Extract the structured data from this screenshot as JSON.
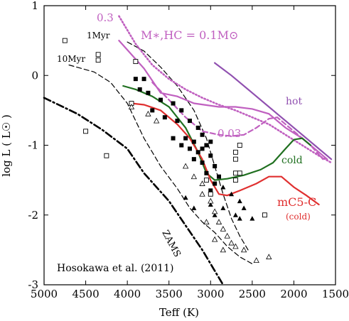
{
  "chart_data": {
    "type": "line",
    "title": "",
    "xlabel": "Teff (K)",
    "ylabel": "log L ( L☉ )",
    "xlim": [
      5000,
      1500
    ],
    "ylim": [
      -3,
      1
    ],
    "x_reversed": true,
    "x_ticks": [
      5000,
      4500,
      4000,
      3500,
      3000,
      2500,
      2000,
      1500
    ],
    "y_ticks": [
      1,
      0,
      -1,
      -2,
      -3
    ],
    "grid": false,
    "annotations": {
      "credit": "Hosokawa et al. (2011)",
      "m_hc": "M∗,HC = 0.1M⊙",
      "val_03_top": "0.3",
      "val_003": "0.03",
      "hot": "hot",
      "cold": "cold",
      "mc5c": "mC5-C",
      "mc5c_sub": "(cold)",
      "zams": "ZAMS",
      "iso_1myr": "1Myr",
      "iso_10myr": "10Myr"
    },
    "colors": {
      "zams": "#000000",
      "isochrone": "#000000",
      "magenta": "#c060c0",
      "purple": "#9050b0",
      "green": "#207020",
      "red": "#e03030"
    },
    "series": [
      {
        "key": "zams",
        "style": "dashdot",
        "x": [
          5000,
          4600,
          4300,
          4000,
          3800,
          3500,
          3300,
          3100,
          2950,
          2850
        ],
        "y": [
          -0.32,
          -0.55,
          -0.78,
          -1.05,
          -1.4,
          -1.8,
          -2.15,
          -2.5,
          -2.8,
          -3.0
        ]
      },
      {
        "key": "iso_1myr",
        "style": "dashed",
        "x": [
          4000,
          3800,
          3600,
          3400,
          3200,
          3050,
          2950,
          2850,
          2750,
          2650,
          2550
        ],
        "y": [
          0.48,
          0.35,
          0.12,
          -0.15,
          -0.5,
          -0.9,
          -1.3,
          -1.7,
          -2.05,
          -2.3,
          -2.5
        ]
      },
      {
        "key": "iso_10myr",
        "style": "dashed",
        "x": [
          4700,
          4400,
          4200,
          4000,
          3800,
          3600,
          3400,
          3250,
          3100,
          2950,
          2800,
          2650,
          2500
        ],
        "y": [
          0.15,
          0.05,
          -0.1,
          -0.4,
          -0.9,
          -1.3,
          -1.62,
          -1.9,
          -2.1,
          -2.25,
          -2.45,
          -2.6,
          -2.7
        ]
      },
      {
        "key": "m_hot_03",
        "color": "magenta",
        "style": "solid",
        "x": [
          4100,
          3800,
          3600,
          3400,
          3200,
          2900,
          2700,
          2500,
          2300,
          2100,
          1900,
          1700,
          1600
        ],
        "y": [
          0.5,
          0.1,
          -0.25,
          -0.3,
          -0.4,
          -0.45,
          -0.45,
          -0.48,
          -0.55,
          -0.75,
          -0.9,
          -1.1,
          -1.2
        ]
      },
      {
        "key": "m_dotted_03",
        "color": "magenta",
        "style": "dotted",
        "x": [
          4100,
          3900,
          3700,
          3500,
          3300,
          3100,
          2900,
          2700,
          2500,
          2300,
          2100,
          1900,
          1700,
          1550
        ],
        "y": [
          0.85,
          0.45,
          0.15,
          -0.05,
          -0.2,
          -0.32,
          -0.42,
          -0.5,
          -0.6,
          -0.7,
          -0.85,
          -1.0,
          -1.15,
          -1.25
        ]
      },
      {
        "key": "m_dashed_003",
        "color": "magenta",
        "style": "dashed",
        "x": [
          3700,
          3500,
          3300,
          3100,
          2900,
          2750,
          2600,
          2450,
          2300,
          2200,
          2000,
          1800,
          1650
        ],
        "y": [
          -0.1,
          -0.35,
          -0.6,
          -0.8,
          -0.85,
          -0.87,
          -0.85,
          -0.75,
          -0.62,
          -0.6,
          -0.8,
          -1.0,
          -1.2
        ]
      },
      {
        "key": "hot_purple",
        "color": "purple",
        "style": "solid",
        "x": [
          2950,
          2750,
          2500,
          2200,
          1950,
          1750,
          1550
        ],
        "y": [
          0.18,
          0.0,
          -0.25,
          -0.55,
          -0.8,
          -1.0,
          -1.2
        ]
      },
      {
        "key": "cold_green",
        "color": "green",
        "style": "solid",
        "x": [
          4050,
          3900,
          3700,
          3500,
          3300,
          3150,
          3050,
          2950,
          2800,
          2600,
          2400,
          2250,
          2100,
          2000,
          1900,
          1800
        ],
        "y": [
          -0.15,
          -0.2,
          -0.3,
          -0.45,
          -0.75,
          -1.1,
          -1.4,
          -1.5,
          -1.48,
          -1.43,
          -1.35,
          -1.25,
          -1.05,
          -0.92,
          -0.9,
          -1.0
        ]
      },
      {
        "key": "red_mc5c",
        "color": "red",
        "style": "solid",
        "x": [
          3950,
          3800,
          3600,
          3400,
          3250,
          3100,
          3000,
          2900,
          2800,
          2650,
          2450,
          2300,
          2150,
          2000,
          1850,
          1700
        ],
        "y": [
          -0.4,
          -0.42,
          -0.5,
          -0.7,
          -0.9,
          -1.2,
          -1.5,
          -1.7,
          -1.72,
          -1.65,
          -1.55,
          -1.45,
          -1.45,
          -1.6,
          -1.72,
          -1.85
        ]
      }
    ],
    "points_filled_square": [
      [
        3900,
        -0.05
      ],
      [
        3800,
        -0.05
      ],
      [
        3850,
        -0.2
      ],
      [
        3750,
        -0.25
      ],
      [
        3600,
        -0.35
      ],
      [
        3450,
        -0.4
      ],
      [
        3350,
        -0.5
      ],
      [
        3700,
        -0.5
      ],
      [
        3550,
        -0.6
      ],
      [
        3400,
        -0.65
      ],
      [
        3250,
        -0.65
      ],
      [
        3150,
        -0.75
      ],
      [
        3450,
        -0.9
      ],
      [
        3300,
        -0.9
      ],
      [
        3200,
        -0.95
      ],
      [
        3100,
        -0.85
      ],
      [
        3000,
        -0.95
      ],
      [
        3050,
        -1.0
      ],
      [
        3350,
        -1.0
      ],
      [
        3250,
        -1.05
      ],
      [
        3150,
        -1.1
      ],
      [
        3000,
        -1.15
      ],
      [
        3200,
        -1.2
      ],
      [
        3100,
        -1.25
      ],
      [
        2950,
        -1.3
      ],
      [
        3050,
        -1.4
      ],
      [
        2950,
        -1.55
      ],
      [
        3000,
        -1.65
      ],
      [
        2900,
        -1.45
      ],
      [
        3100,
        -1.05
      ]
    ],
    "points_filled_triangle": [
      [
        3300,
        -1.75
      ],
      [
        3200,
        -1.9
      ],
      [
        3000,
        -1.85
      ],
      [
        2850,
        -1.9
      ],
      [
        2700,
        -2.0
      ],
      [
        2650,
        -2.05
      ],
      [
        2500,
        -2.05
      ],
      [
        2850,
        -1.6
      ],
      [
        2750,
        -1.7
      ],
      [
        2950,
        -2.0
      ],
      [
        2600,
        -1.9
      ],
      [
        2650,
        -1.8
      ]
    ],
    "points_open_square": [
      [
        4750,
        0.5
      ],
      [
        4350,
        0.3
      ],
      [
        4350,
        0.22
      ],
      [
        3900,
        0.2
      ],
      [
        3950,
        -0.4
      ],
      [
        4500,
        -0.8
      ],
      [
        4250,
        -1.15
      ],
      [
        2650,
        -1.0
      ],
      [
        2700,
        -1.1
      ],
      [
        2700,
        -1.2
      ],
      [
        2700,
        -1.4
      ],
      [
        2650,
        -1.4
      ],
      [
        2350,
        -2.0
      ],
      [
        3000,
        -1.7
      ],
      [
        3050,
        -1.5
      ],
      [
        2700,
        -1.5
      ]
    ],
    "points_open_triangle": [
      [
        3950,
        -0.45
      ],
      [
        3750,
        -0.55
      ],
      [
        3650,
        -0.65
      ],
      [
        3300,
        -1.3
      ],
      [
        3200,
        -1.45
      ],
      [
        3100,
        -1.55
      ],
      [
        3100,
        -1.7
      ],
      [
        3000,
        -1.8
      ],
      [
        2950,
        -1.95
      ],
      [
        2900,
        -2.1
      ],
      [
        2850,
        -2.2
      ],
      [
        2800,
        -2.3
      ],
      [
        2750,
        -2.4
      ],
      [
        2700,
        -2.45
      ],
      [
        2600,
        -2.5
      ],
      [
        2450,
        -2.65
      ],
      [
        2300,
        -2.6
      ],
      [
        2950,
        -2.35
      ],
      [
        3050,
        -2.1
      ],
      [
        2850,
        -2.5
      ]
    ]
  }
}
